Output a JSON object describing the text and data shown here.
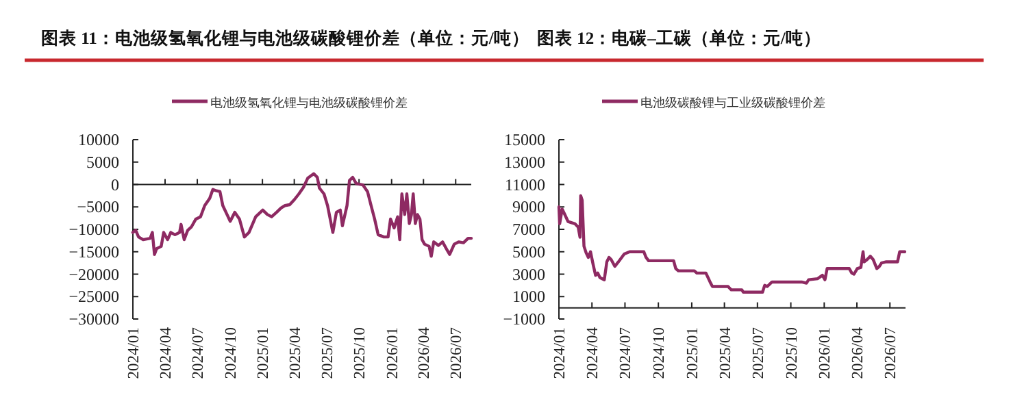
{
  "chart_data": [
    {
      "type": "line",
      "title": "图表 11：电池级氢氧化锂与电池级碳酸锂价差（单位：元/吨）",
      "legend": "top",
      "x": [
        "2024-01-01",
        "2024-01-09",
        "2024-01-17",
        "2024-01-30",
        "2024-02-19",
        "2024-02-25",
        "2024-03-02",
        "2024-03-08",
        "2024-03-21",
        "2024-03-28",
        "2024-04-08",
        "2024-04-17",
        "2024-04-29",
        "2024-05-12",
        "2024-05-16",
        "2024-05-25",
        "2024-06-04",
        "2024-06-14",
        "2024-06-27",
        "2024-07-10",
        "2024-07-22",
        "2024-08-05",
        "2024-08-14",
        "2024-08-24",
        "2024-09-03",
        "2024-09-11",
        "2024-09-23",
        "2024-10-02",
        "2024-10-15",
        "2024-10-28",
        "2024-11-11",
        "2024-11-24",
        "2024-12-13",
        "2025-01-02",
        "2025-01-15",
        "2025-01-27",
        "2025-02-10",
        "2025-02-23",
        "2025-03-06",
        "2025-03-19",
        "2025-04-01",
        "2025-04-14",
        "2025-04-27",
        "2025-05-09",
        "2025-05-26",
        "2025-06-05",
        "2025-06-11",
        "2025-06-24",
        "2025-07-04",
        "2025-07-19",
        "2025-07-29",
        "2025-08-09",
        "2025-08-15",
        "2025-08-28",
        "2025-09-04",
        "2025-09-13",
        "2025-09-23",
        "2025-10-12",
        "2025-10-25",
        "2025-11-04",
        "2025-11-14",
        "2025-11-24",
        "2025-12-10",
        "2025-12-22",
        "2025-12-29",
        "2026-01-08",
        "2026-01-18",
        "2026-01-24",
        "2026-01-30",
        "2026-02-07",
        "2026-02-13",
        "2026-02-20",
        "2026-02-26",
        "2026-03-03",
        "2026-03-09",
        "2026-03-15",
        "2026-03-22",
        "2026-03-28",
        "2026-04-04",
        "2026-04-17",
        "2026-04-23",
        "2026-04-30",
        "2026-05-13",
        "2026-05-25",
        "2026-06-08",
        "2026-06-14",
        "2026-06-27",
        "2026-07-10",
        "2026-07-23",
        "2026-08-05",
        "2026-08-14"
      ],
      "series": [
        {
          "name": "电池级氢氧化锂与电池级碳酸锂价差",
          "color": "#8e2a62",
          "values": [
            -10700,
            -10200,
            -11700,
            -12300,
            -12000,
            -10700,
            -15600,
            -14300,
            -13800,
            -10700,
            -12300,
            -10700,
            -11200,
            -10700,
            -8900,
            -12300,
            -10200,
            -9500,
            -7700,
            -7200,
            -4700,
            -3100,
            -1100,
            -1400,
            -1600,
            -4700,
            -6700,
            -8200,
            -6200,
            -7700,
            -11700,
            -10700,
            -7200,
            -5700,
            -6700,
            -7200,
            -6200,
            -5200,
            -4700,
            -4500,
            -3400,
            -2100,
            -600,
            1400,
            2400,
            1600,
            -800,
            -2100,
            -4700,
            -10700,
            -6200,
            -5700,
            -9200,
            -4700,
            900,
            1600,
            200,
            -100,
            -1600,
            -4700,
            -7700,
            -11200,
            -11700,
            -11700,
            -7700,
            -9700,
            -7200,
            -12300,
            -2100,
            -6700,
            -2100,
            -8700,
            -6700,
            -2100,
            -8700,
            -6700,
            -7700,
            -12300,
            -13300,
            -13800,
            -16000,
            -12800,
            -13600,
            -12800,
            -14800,
            -15600,
            -13300,
            -12800,
            -13000,
            -12000,
            -12000
          ]
        }
      ],
      "xlim": [
        "2024-01-01",
        "2026-08-14"
      ],
      "xticks": [
        {
          "value": "2024-01",
          "label": "2024/01"
        },
        {
          "value": "2024-04",
          "label": "2024/04"
        },
        {
          "value": "2024-07",
          "label": "2024/07"
        },
        {
          "value": "2024-10",
          "label": "2024/10"
        },
        {
          "value": "2025-01",
          "label": "2025/01"
        },
        {
          "value": "2025-04",
          "label": "2025/04"
        },
        {
          "value": "2025-07",
          "label": "2025/07"
        },
        {
          "value": "2025-10",
          "label": "2025/10"
        },
        {
          "value": "2026-01",
          "label": "2026/01"
        },
        {
          "value": "2026-04",
          "label": "2026/04"
        },
        {
          "value": "2026-07",
          "label": "2026/07"
        }
      ],
      "ylim": [
        -30000,
        10000
      ],
      "yticks": [
        -30000,
        -25000,
        -20000,
        -15000,
        -10000,
        -5000,
        0,
        5000,
        10000
      ]
    },
    {
      "type": "line",
      "title": "图表 12：电碳–工碳（单位：元/吨）",
      "legend": "top",
      "x": [
        "2024-01-01",
        "2024-01-03",
        "2024-01-10",
        "2024-01-16",
        "2024-01-26",
        "2024-02-14",
        "2024-02-23",
        "2024-02-28",
        "2024-03-01",
        "2024-03-05",
        "2024-03-10",
        "2024-03-16",
        "2024-03-22",
        "2024-03-28",
        "2024-04-04",
        "2024-04-11",
        "2024-04-17",
        "2024-04-23",
        "2024-05-05",
        "2024-05-12",
        "2024-05-18",
        "2024-05-24",
        "2024-06-03",
        "2024-06-13",
        "2024-06-29",
        "2024-07-14",
        "2024-08-22",
        "2024-08-28",
        "2024-09-04",
        "2024-11-12",
        "2024-11-18",
        "2024-11-25",
        "2025-01-08",
        "2025-01-15",
        "2025-02-09",
        "2025-02-22",
        "2025-02-27",
        "2025-04-11",
        "2025-04-20",
        "2025-05-19",
        "2025-05-23",
        "2025-07-15",
        "2025-07-21",
        "2025-07-28",
        "2025-08-10",
        "2025-10-31",
        "2025-11-13",
        "2025-11-19",
        "2025-12-14",
        "2025-12-27",
        "2026-01-03",
        "2026-01-09",
        "2026-03-11",
        "2026-03-18",
        "2026-03-24",
        "2026-04-02",
        "2026-04-12",
        "2026-04-18",
        "2026-04-21",
        "2026-04-29",
        "2026-05-08",
        "2026-05-16",
        "2026-05-26",
        "2026-06-02",
        "2026-06-08",
        "2026-06-21",
        "2026-07-22",
        "2026-07-28",
        "2026-08-11"
      ],
      "series": [
        {
          "name": "电池级碳酸锂与工业级碳酸锂价差",
          "color": "#8e2a62",
          "values": [
            9000,
            7500,
            8800,
            8400,
            7700,
            7500,
            7200,
            6300,
            10000,
            9600,
            5500,
            4900,
            4500,
            5000,
            3900,
            2900,
            3100,
            2700,
            2500,
            4100,
            4500,
            4300,
            3700,
            4100,
            4800,
            5000,
            5000,
            4500,
            4200,
            4200,
            3500,
            3300,
            3300,
            3100,
            3100,
            2200,
            1900,
            1900,
            1600,
            1600,
            1400,
            1400,
            2000,
            1900,
            2300,
            2300,
            2200,
            2500,
            2600,
            2900,
            2500,
            3500,
            3500,
            3100,
            3000,
            3500,
            3600,
            5000,
            4100,
            4300,
            4600,
            4300,
            3500,
            3700,
            4000,
            4100,
            4100,
            5000,
            5000
          ]
        }
      ],
      "xlim": [
        "2024-01-01",
        "2026-08-13"
      ],
      "xticks": [
        {
          "value": "2024-01",
          "label": "2024/01"
        },
        {
          "value": "2024-04",
          "label": "2024/04"
        },
        {
          "value": "2024-07",
          "label": "2024/07"
        },
        {
          "value": "2024-10",
          "label": "2024/10"
        },
        {
          "value": "2025-01",
          "label": "2025/01"
        },
        {
          "value": "2025-04",
          "label": "2025/04"
        },
        {
          "value": "2025-07",
          "label": "2025/07"
        },
        {
          "value": "2025-10",
          "label": "2025/10"
        },
        {
          "value": "2026-01",
          "label": "2026/01"
        },
        {
          "value": "2026-04",
          "label": "2026/04"
        },
        {
          "value": "2026-07",
          "label": "2026/07"
        }
      ],
      "ylim": [
        -1000,
        15000
      ],
      "yticks": [
        -1000,
        1000,
        3000,
        5000,
        7000,
        9000,
        11000,
        13000,
        15000
      ]
    }
  ]
}
